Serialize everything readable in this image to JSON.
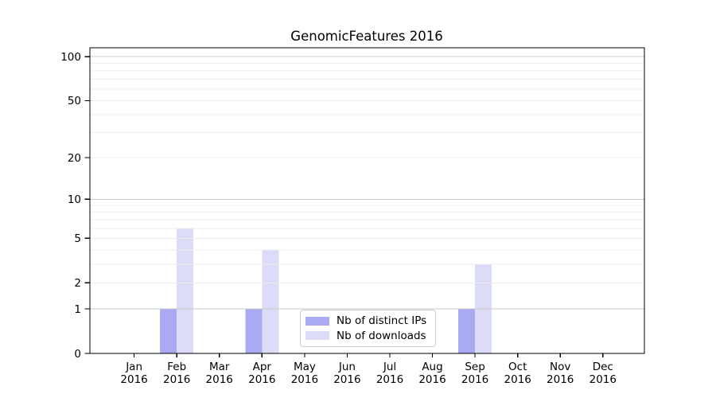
{
  "chart_data": {
    "type": "bar",
    "title": "GenomicFeatures 2016",
    "categories": [
      "Jan",
      "Feb",
      "Mar",
      "Apr",
      "May",
      "Jun",
      "Jul",
      "Aug",
      "Sep",
      "Oct",
      "Nov",
      "Dec"
    ],
    "xtick_year": "2016",
    "series": [
      {
        "name": "Nb of distinct IPs",
        "color": "#aaaaf3",
        "values": [
          0,
          1,
          0,
          1,
          0,
          0,
          0,
          0,
          1,
          0,
          0,
          0
        ]
      },
      {
        "name": "Nb of downloads",
        "color": "#dcdcf8",
        "values": [
          0,
          6,
          0,
          4,
          0,
          0,
          0,
          0,
          3,
          0,
          0,
          0
        ]
      }
    ],
    "yscale": "log10(1+v)",
    "ylim": [
      0,
      115
    ],
    "ytick_values": [
      0,
      1,
      2,
      5,
      10,
      20,
      50,
      100
    ],
    "ytick_labels": [
      "0",
      "1",
      "2",
      "5",
      "10",
      "20",
      "50",
      "100"
    ],
    "major_grid_values": [
      1,
      10,
      100
    ],
    "minor_grid_values": [
      2,
      3,
      4,
      5,
      6,
      7,
      8,
      9,
      20,
      30,
      40,
      50,
      60,
      70,
      80,
      90
    ],
    "grid": "horizontal",
    "legend_position": "lower center",
    "colors": {
      "major_grid": "#c8c8c8",
      "minor_grid": "#ececec",
      "frame": "#000000",
      "background": "#ffffff"
    }
  }
}
